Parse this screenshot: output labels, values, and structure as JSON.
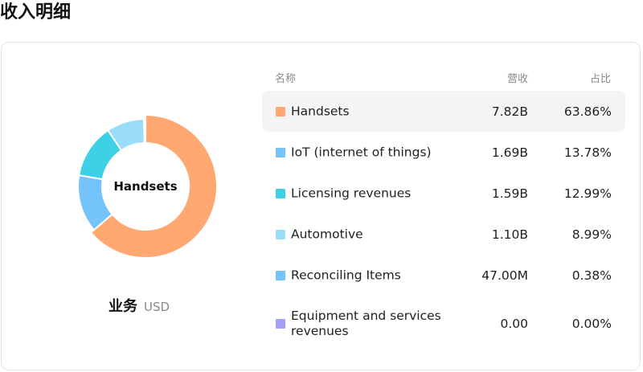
{
  "page": {
    "title": "收入明细"
  },
  "chart": {
    "center_label": "Handsets",
    "caption": "业务",
    "unit": "USD"
  },
  "table": {
    "headers": {
      "name": "名称",
      "revenue": "营收",
      "share": "占比"
    },
    "rows": [
      {
        "name": "Handsets",
        "revenue": "7.82B",
        "share": "63.86%",
        "color": "#FFA872",
        "active": true
      },
      {
        "name": "IoT (internet of things)",
        "revenue": "1.69B",
        "share": "13.78%",
        "color": "#74C3FB",
        "active": false
      },
      {
        "name": "Licensing revenues",
        "revenue": "1.59B",
        "share": "12.99%",
        "color": "#3ED0E6",
        "active": false
      },
      {
        "name": "Automotive",
        "revenue": "1.10B",
        "share": "8.99%",
        "color": "#9ADDFB",
        "active": false
      },
      {
        "name": "Reconciling Items",
        "revenue": "47.00M",
        "share": "0.38%",
        "color": "#74C3FB",
        "active": false
      },
      {
        "name": "Equipment and services revenues",
        "revenue": "0.00",
        "share": "0.00%",
        "color": "#A3A0FB",
        "active": false
      }
    ]
  },
  "chart_data": {
    "type": "pie",
    "donut": true,
    "categories": [
      "Handsets",
      "IoT (internet of things)",
      "Licensing revenues",
      "Automotive",
      "Reconciling Items",
      "Equipment and services revenues"
    ],
    "values": [
      63.86,
      13.78,
      12.99,
      8.99,
      0.38,
      0.0
    ],
    "colors": [
      "#FFA872",
      "#74C3FB",
      "#3ED0E6",
      "#9ADDFB",
      "#74C3FB",
      "#A3A0FB"
    ],
    "start_angle_deg": 0,
    "direction": "clockwise",
    "highlighted": "Handsets",
    "legend": "right-table"
  }
}
